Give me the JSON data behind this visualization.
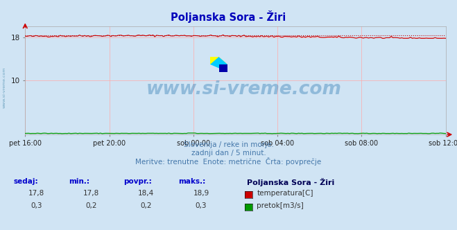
{
  "title": "Poljanska Sora - Žiri",
  "background_color": "#d0e4f4",
  "plot_bg_color": "#d0e4f4",
  "grid_color_v": "#ffaaaa",
  "grid_color_h": "#ffaaaa",
  "temp_color": "#cc0000",
  "flow_color": "#009900",
  "avg_line_color": "#cc0000",
  "x_tick_labels": [
    "pet 16:00",
    "pet 20:00",
    "sob 00:00",
    "sob 04:00",
    "sob 08:00",
    "sob 12:00"
  ],
  "x_tick_positions": [
    0,
    48,
    96,
    144,
    192,
    240
  ],
  "total_points": 241,
  "y_min": 0,
  "y_max": 20,
  "y_ticks": [
    10,
    18
  ],
  "temp_min": 17.8,
  "temp_max": 18.9,
  "temp_avg": 18.4,
  "temp_current": 17.8,
  "flow_min": 0.2,
  "flow_max": 0.3,
  "flow_avg": 0.2,
  "flow_current": 0.3,
  "subtitle1": "Slovenija / reke in morje.",
  "subtitle2": "zadnji dan / 5 minut.",
  "subtitle3": "Meritve: trenutne  Enote: metrične  Črta: povprečje",
  "legend_title": "Poljanska Sora - Žiri",
  "label_temp": "temperatura[C]",
  "label_flow": "pretok[m3/s]",
  "col_sedaj": "sedaj:",
  "col_min": "min.:",
  "col_povpr": "povpr.:",
  "col_maks": "maks.:",
  "watermark_text": "www.si-vreme.com",
  "watermark_color": "#4488bb",
  "side_watermark": "www.si-vreme.com"
}
